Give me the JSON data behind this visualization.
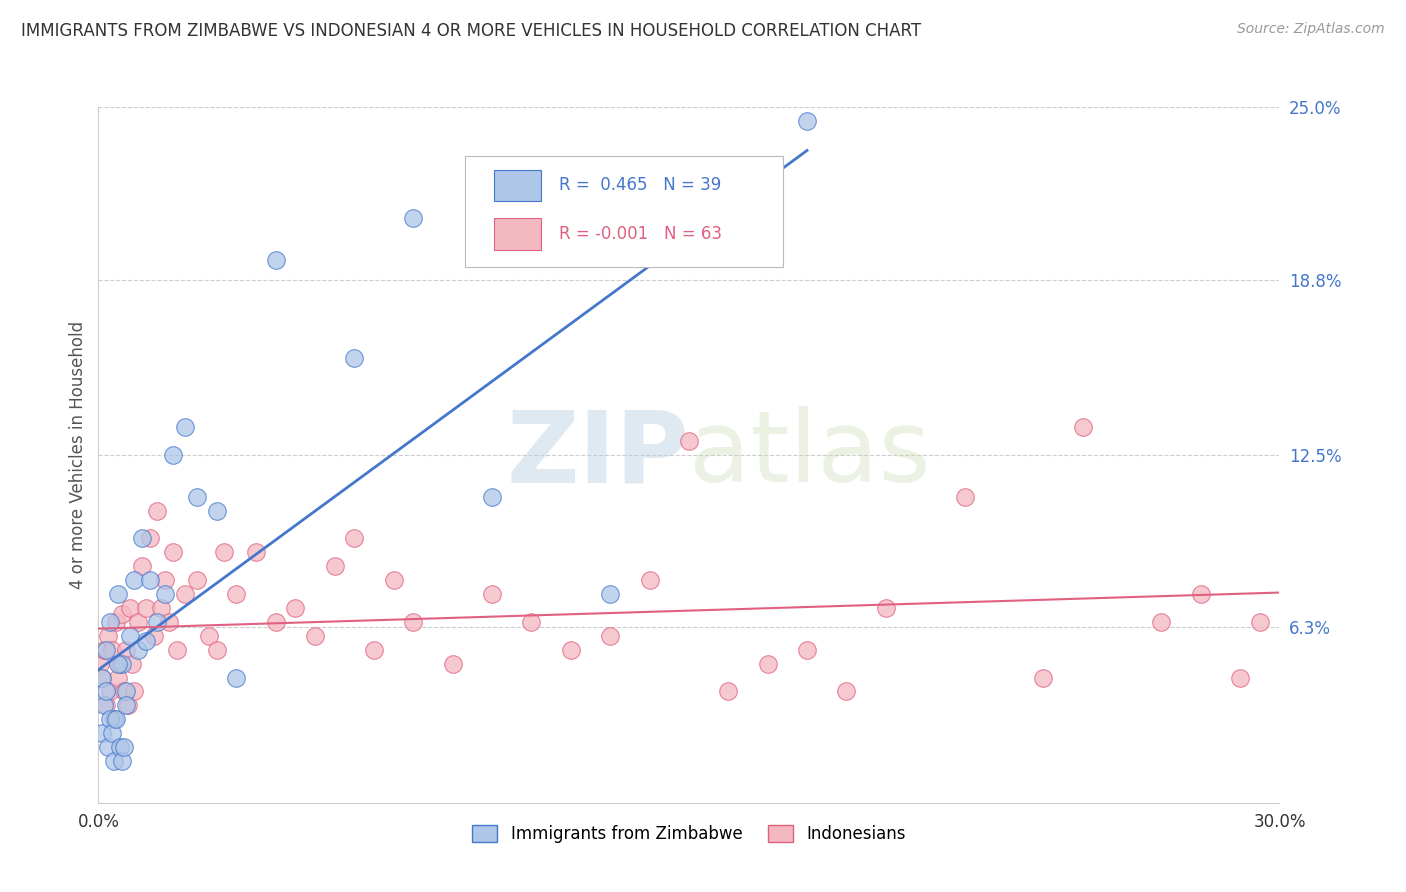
{
  "title": "IMMIGRANTS FROM ZIMBABWE VS INDONESIAN 4 OR MORE VEHICLES IN HOUSEHOLD CORRELATION CHART",
  "source": "Source: ZipAtlas.com",
  "ylabel": "4 or more Vehicles in Household",
  "xlim": [
    0.0,
    30.0
  ],
  "ylim": [
    0.0,
    25.0
  ],
  "xticks": [
    0.0,
    30.0
  ],
  "xticklabels": [
    "0.0%",
    "30.0%"
  ],
  "ytick_positions": [
    6.3,
    12.5,
    18.8,
    25.0
  ],
  "ytick_labels": [
    "6.3%",
    "12.5%",
    "18.8%",
    "25.0%"
  ],
  "grid_color": "#cccccc",
  "background_color": "#ffffff",
  "series1_name": "Immigrants from Zimbabwe",
  "series1_color": "#aec6e8",
  "series1_R": 0.465,
  "series1_N": 39,
  "series1_line_color": "#4477cc",
  "series2_name": "Indonesians",
  "series2_color": "#f4b8c1",
  "series2_R": -0.001,
  "series2_N": 63,
  "series2_line_color": "#e06080",
  "watermark_zip": "ZIP",
  "watermark_atlas": "atlas",
  "zimbabwe_x": [
    0.1,
    0.2,
    0.3,
    0.4,
    0.5,
    0.6,
    0.7,
    0.8,
    0.9,
    1.0,
    1.1,
    1.2,
    1.3,
    1.5,
    1.7,
    1.9,
    2.2,
    2.5,
    3.0,
    3.5,
    0.1,
    0.15,
    0.2,
    0.25,
    0.3,
    0.35,
    0.4,
    0.45,
    0.5,
    0.55,
    0.6,
    0.65,
    0.7,
    4.5,
    6.5,
    8.0,
    10.0,
    13.0,
    18.0
  ],
  "zimbabwe_y": [
    4.5,
    5.5,
    6.5,
    3.0,
    7.5,
    5.0,
    4.0,
    6.0,
    8.0,
    5.5,
    9.5,
    5.8,
    8.0,
    6.5,
    7.5,
    12.5,
    13.5,
    11.0,
    10.5,
    4.5,
    2.5,
    3.5,
    4.0,
    2.0,
    3.0,
    2.5,
    1.5,
    3.0,
    5.0,
    2.0,
    1.5,
    2.0,
    3.5,
    19.5,
    16.0,
    21.0,
    11.0,
    7.5,
    24.5
  ],
  "indonesian_x": [
    0.05,
    0.1,
    0.15,
    0.2,
    0.25,
    0.3,
    0.35,
    0.4,
    0.45,
    0.5,
    0.55,
    0.6,
    0.65,
    0.7,
    0.75,
    0.8,
    0.85,
    0.9,
    1.0,
    1.1,
    1.2,
    1.3,
    1.4,
    1.5,
    1.6,
    1.7,
    1.8,
    1.9,
    2.0,
    2.2,
    2.5,
    2.8,
    3.0,
    3.2,
    3.5,
    4.0,
    4.5,
    5.0,
    5.5,
    6.0,
    6.5,
    7.0,
    7.5,
    8.0,
    9.0,
    10.0,
    11.0,
    12.0,
    13.0,
    14.0,
    15.0,
    16.0,
    17.0,
    18.0,
    19.0,
    20.0,
    22.0,
    24.0,
    25.0,
    27.0,
    28.0,
    29.0,
    29.5
  ],
  "indonesian_y": [
    5.0,
    4.5,
    5.5,
    3.5,
    6.0,
    4.0,
    5.5,
    3.0,
    6.5,
    4.5,
    5.0,
    6.8,
    4.0,
    5.5,
    3.5,
    7.0,
    5.0,
    4.0,
    6.5,
    8.5,
    7.0,
    9.5,
    6.0,
    10.5,
    7.0,
    8.0,
    6.5,
    9.0,
    5.5,
    7.5,
    8.0,
    6.0,
    5.5,
    9.0,
    7.5,
    9.0,
    6.5,
    7.0,
    6.0,
    8.5,
    9.5,
    5.5,
    8.0,
    6.5,
    5.0,
    7.5,
    6.5,
    5.5,
    6.0,
    8.0,
    13.0,
    4.0,
    5.0,
    5.5,
    4.0,
    7.0,
    11.0,
    4.5,
    13.5,
    6.5,
    7.5,
    4.5,
    6.5
  ],
  "legend_R1_text": "R =  0.465   N = 39",
  "legend_R2_text": "R = -0.001   N = 63"
}
